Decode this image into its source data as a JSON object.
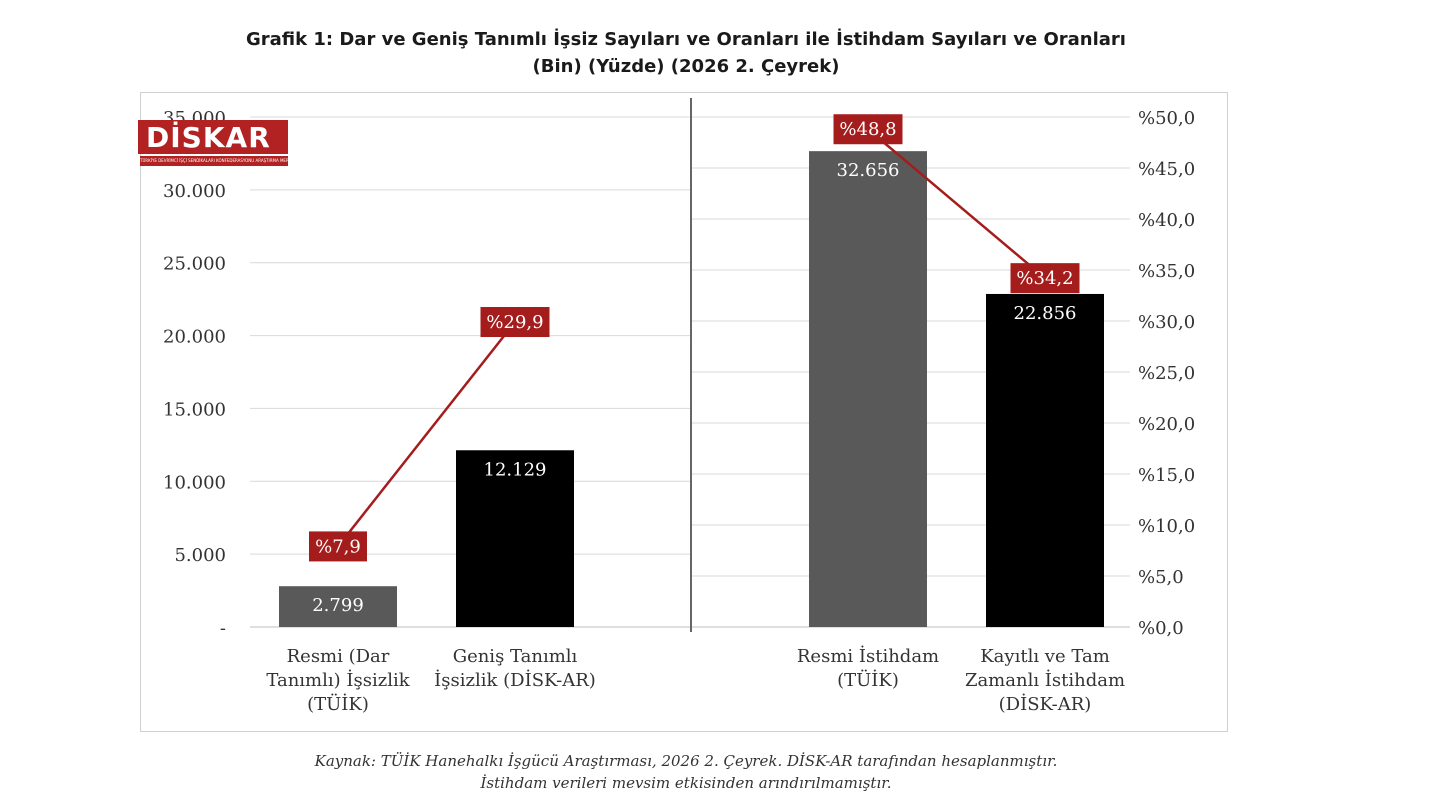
{
  "title_line1": "Grafik 1: Dar ve Geniş Tanımlı İşsiz Sayıları ve Oranları ile İstihdam Sayıları ve Oranları",
  "title_line2": "(Bin) (Yüzde) (2026 2. Çeyrek)",
  "source_line1": "Kaynak: TÜİK Hanehalkı İşgücü Araştırması, 2026 2. Çeyrek. DİSK-AR tarafından hesaplanmıştır.",
  "source_line2": "İstihdam verileri mevsim etkisinden arındırılmamıştır.",
  "logo": {
    "text": "DİSKAR",
    "subtitle": "TÜRKİYE DEVRİMCİ İŞÇİ SENDİKALARI KONFEDERASYONU ARAŞTIRMA MERKEZİ"
  },
  "colors": {
    "official_bar": "#595959",
    "disk_bar": "#000000",
    "rate_line": "#a51c1c",
    "rate_label_bg": "#a51c1c",
    "grid": "#d9d9d9"
  },
  "chart_data": {
    "type": "bar",
    "left_axis": {
      "ylim": [
        0,
        35000
      ],
      "ticks": [
        "-",
        "5.000",
        "10.000",
        "15.000",
        "20.000",
        "25.000",
        "30.000",
        "35.000"
      ]
    },
    "right_axis": {
      "ylim": [
        0,
        50
      ],
      "ticks": [
        "%0,0",
        "%5,0",
        "%10,0",
        "%15,0",
        "%20,0",
        "%25,0",
        "%30,0",
        "%35,0",
        "%40,0",
        "%45,0",
        "%50,0"
      ]
    },
    "grid": true,
    "categories": [
      [
        "Resmi (Dar",
        "Tanımlı) İşsizlik",
        "(TÜİK)"
      ],
      [
        "Geniş Tanımlı",
        "İşsizlik (DİSK-AR)"
      ],
      [
        "Resmi İstihdam",
        "(TÜİK)"
      ],
      [
        "Kayıtlı ve Tam",
        "Zamanlı İstihdam",
        "(DİSK-AR)"
      ]
    ],
    "bars": [
      {
        "value": 2799,
        "label": "2.799"
      },
      {
        "value": 12129,
        "label": "12.129"
      },
      {
        "value": 32656,
        "label": "32.656"
      },
      {
        "value": 22856,
        "label": "22.856"
      }
    ],
    "rates": [
      {
        "value": 7.9,
        "label": "%7,9"
      },
      {
        "value": 29.9,
        "label": "%29,9"
      },
      {
        "value": 48.8,
        "label": "%48,8"
      },
      {
        "value": 34.2,
        "label": "%34,2"
      }
    ]
  }
}
